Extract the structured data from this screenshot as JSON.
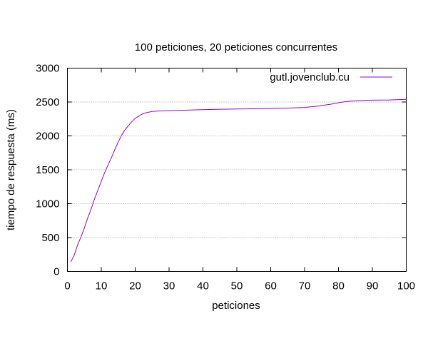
{
  "chart_data": {
    "type": "line",
    "title": "100 peticiones, 20 peticiones concurrentes",
    "xlabel": "peticiones",
    "ylabel": "tiempo de respuesta (ms)",
    "xlim": [
      0,
      100
    ],
    "ylim": [
      0,
      3000
    ],
    "xticks": [
      0,
      10,
      20,
      30,
      40,
      50,
      60,
      70,
      80,
      90,
      100
    ],
    "yticks": [
      0,
      500,
      1000,
      1500,
      2000,
      2500,
      3000
    ],
    "grid": "horizontal dotted",
    "legend_position": "top-right",
    "series": [
      {
        "name": "gutl.jovenclub.cu",
        "color": "#9400d3",
        "x": [
          1,
          2,
          3,
          4,
          5,
          6,
          7,
          8,
          9,
          10,
          11,
          12,
          13,
          14,
          15,
          16,
          17,
          18,
          19,
          20,
          21,
          22,
          23,
          24,
          25,
          26,
          28,
          30,
          35,
          40,
          45,
          50,
          55,
          60,
          65,
          70,
          72,
          74,
          76,
          78,
          80,
          82,
          84,
          86,
          88,
          90,
          95,
          100
        ],
        "y": [
          140,
          240,
          390,
          510,
          640,
          790,
          920,
          1070,
          1200,
          1330,
          1460,
          1570,
          1680,
          1800,
          1910,
          2010,
          2090,
          2150,
          2210,
          2260,
          2290,
          2320,
          2340,
          2350,
          2360,
          2365,
          2370,
          2372,
          2380,
          2387,
          2393,
          2397,
          2400,
          2405,
          2410,
          2420,
          2430,
          2440,
          2455,
          2470,
          2490,
          2505,
          2515,
          2520,
          2525,
          2527,
          2530,
          2540
        ]
      }
    ]
  }
}
